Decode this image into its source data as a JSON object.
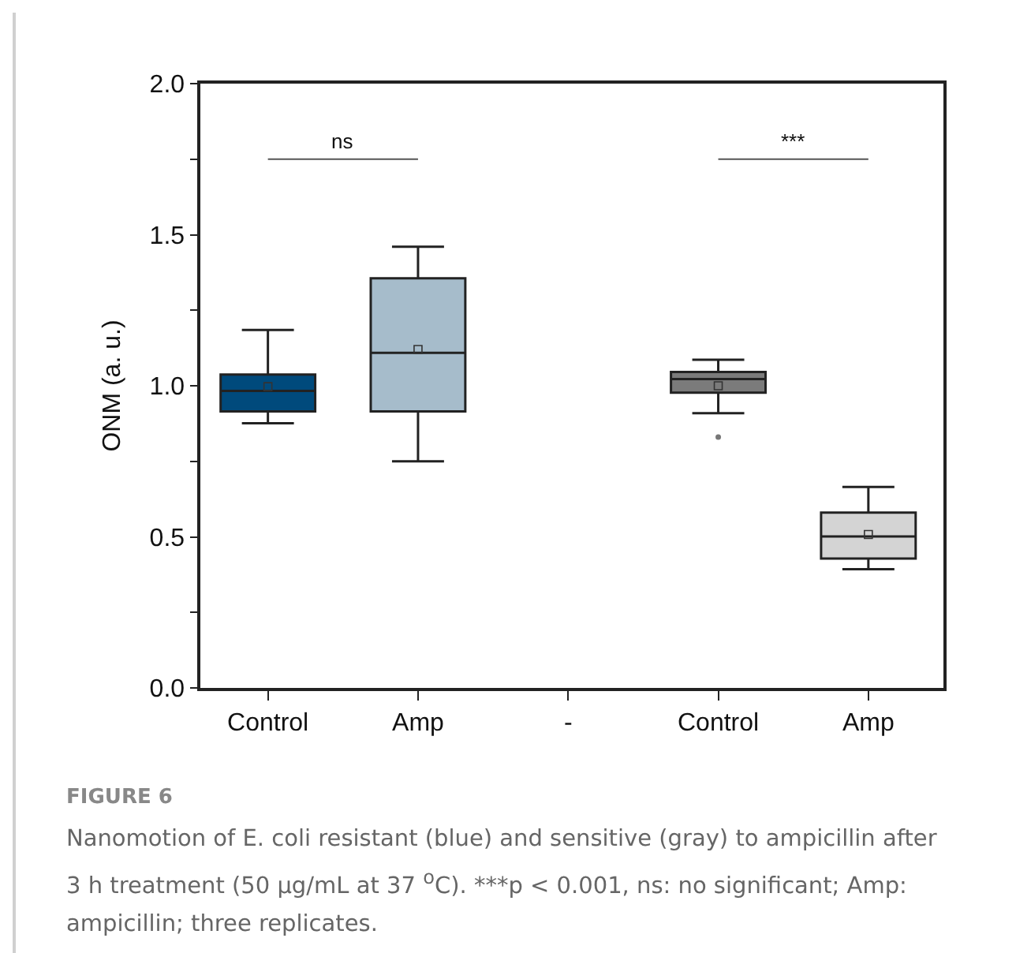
{
  "chart_data": {
    "type": "box",
    "ylabel": "ONM (a. u.)",
    "categories": [
      "Control",
      "Amp",
      "-",
      "Control",
      "Amp"
    ],
    "colors": [
      "#004a7c",
      "#a6bccb",
      null,
      "#7b7b7b",
      "#d4d4d4"
    ],
    "boxes": [
      {
        "low": 0.876,
        "q1": 0.915,
        "median": 0.983,
        "q3": 1.037,
        "high": 1.185,
        "mean": 0.997
      },
      {
        "low": 0.75,
        "q1": 0.915,
        "median": 1.109,
        "q3": 1.356,
        "high": 1.46,
        "mean": 1.12
      },
      null,
      {
        "low": 0.909,
        "q1": 0.977,
        "median": 1.022,
        "q3": 1.046,
        "high": 1.086,
        "mean": 1.0,
        "outliers": [
          0.83
        ]
      },
      {
        "low": 0.393,
        "q1": 0.428,
        "median": 0.501,
        "q3": 0.58,
        "high": 0.665,
        "mean": 0.508
      }
    ],
    "ylim": [
      0,
      2
    ],
    "yticks": [
      {
        "value": 0,
        "label": "0.0"
      },
      {
        "value": 0.25,
        "label": null
      },
      {
        "value": 0.5,
        "label": "0.5"
      },
      {
        "value": 0.75,
        "label": null
      },
      {
        "value": 1,
        "label": "1.0"
      },
      {
        "value": 1.25,
        "label": null
      },
      {
        "value": 1.5,
        "label": "1.5"
      },
      {
        "value": 1.75,
        "label": null
      },
      {
        "value": 2,
        "label": "2.0"
      }
    ],
    "grid": false,
    "marker": "square",
    "annotations": [
      "ns",
      "***",
      "FIGURE 6",
      "Nanomotion of E. coli resistant (blue) and sensitive (gray) to ampicillin after 3 h treatment (50 µg/mL at 37 $^{o}$C). ***p < 0.001, ns: no significant; Amp: ampicillin; three replicates."
    ]
  }
}
